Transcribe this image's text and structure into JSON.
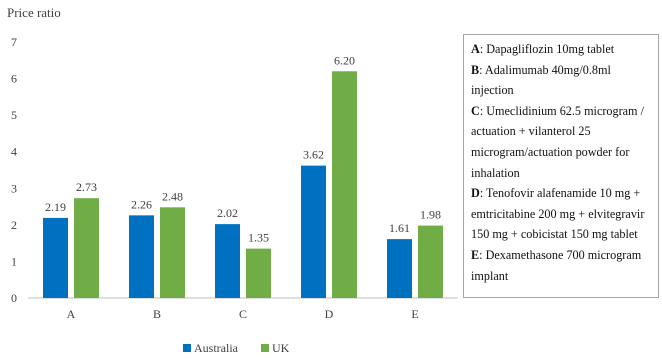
{
  "chart_data": {
    "type": "bar",
    "ylabel": "Price ratio",
    "ylim": [
      0,
      7
    ],
    "yticks": [
      "0",
      "1",
      "2",
      "3",
      "4",
      "5",
      "6",
      "7"
    ],
    "categories": [
      "A",
      "B",
      "C",
      "D",
      "E"
    ],
    "series": [
      {
        "name": "Australia",
        "color": "#0070c0",
        "values": [
          2.19,
          2.26,
          2.02,
          3.62,
          1.61
        ],
        "labels": [
          "2.19",
          "2.26",
          "2.02",
          "3.62",
          "1.61"
        ]
      },
      {
        "name": "UK",
        "color": "#70ad47",
        "values": [
          2.73,
          2.48,
          1.35,
          6.2,
          1.98
        ],
        "labels": [
          "2.73",
          "2.48",
          "1.35",
          "6.20",
          "1.98"
        ]
      }
    ],
    "legend_position": "bottom",
    "grid": false
  },
  "notes": [
    {
      "letter": "A",
      "text": ": Dapagliflozin 10mg tablet"
    },
    {
      "letter": "B",
      "text": ": Adalimumab 40mg/0.8ml injection"
    },
    {
      "letter": "C",
      "text": ": Umeclidinium 62.5 microgram / actuation + vilanterol 25 microgram/actuation powder for inhalation"
    },
    {
      "letter": "D",
      "text": ": Tenofovir alafenamide 10 mg + emtricitabine 200 mg + elvitegravir 150 mg + cobicistat 150 mg tablet"
    },
    {
      "letter": "E",
      "text": ": Dexamethasone 700 microgram implant"
    }
  ]
}
